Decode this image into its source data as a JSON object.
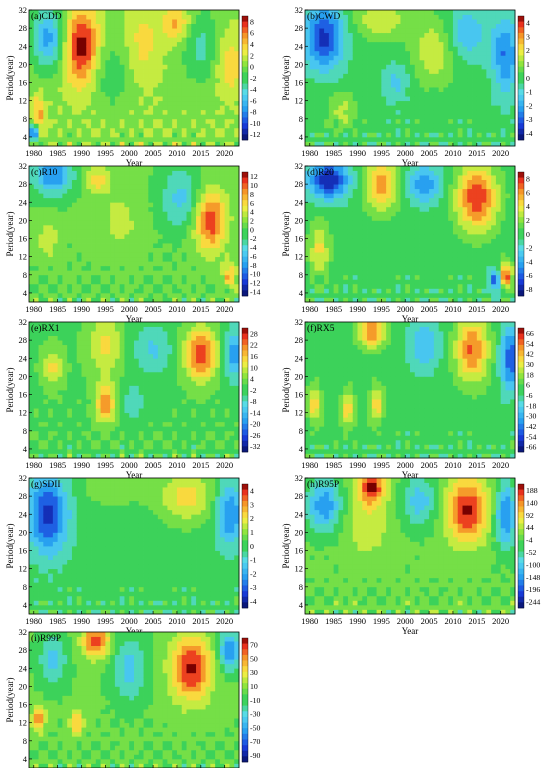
{
  "chart_data": [
    {
      "type": "heatmap",
      "panel": "(a)CDD",
      "xlabel": "Year",
      "ylabel": "Period(year)",
      "x_ticks": [
        "1980",
        "1985",
        "1990",
        "1995",
        "2000",
        "2005",
        "2010",
        "2015",
        "2020"
      ],
      "y_ticks": [
        "4",
        "8",
        "12",
        "16",
        "20",
        "24",
        "28",
        "32"
      ],
      "xlim": [
        1979,
        2023
      ],
      "ylim": [
        2,
        32
      ],
      "colorbar_ticks": [
        "8",
        "6",
        "4",
        "2",
        "0",
        "-2",
        "-4",
        "-6",
        "-8",
        "-10",
        "-12"
      ],
      "colorbar_range": [
        -14,
        9
      ],
      "features": [
        {
          "x": 1990,
          "y": 24,
          "value": 9,
          "sx": 2.5,
          "sy": 6
        },
        {
          "x": 1983,
          "y": 26,
          "value": -8,
          "sx": 2.5,
          "sy": 5
        },
        {
          "x": 2003,
          "y": 25,
          "value": 3,
          "sx": 2.5,
          "sy": 6
        },
        {
          "x": 2010,
          "y": 29,
          "value": 5,
          "sx": 2,
          "sy": 3
        },
        {
          "x": 2015,
          "y": 24,
          "value": -4,
          "sx": 3,
          "sy": 6
        },
        {
          "x": 1996,
          "y": 18,
          "value": -3,
          "sx": 3,
          "sy": 5
        },
        {
          "x": 1981,
          "y": 9,
          "value": 5,
          "sx": 1,
          "sy": 3
        },
        {
          "x": 1980,
          "y": 5,
          "value": -11,
          "sx": 0.8,
          "sy": 1.5
        },
        {
          "x": 2021,
          "y": 20,
          "value": 4,
          "sx": 2,
          "sy": 5
        }
      ]
    },
    {
      "type": "heatmap",
      "panel": "(b)CWD",
      "xlabel": "Year",
      "ylabel": "Period(year)",
      "x_ticks": [
        "1980",
        "1985",
        "1990",
        "1995",
        "2000",
        "2005",
        "2010",
        "2015",
        "2020"
      ],
      "y_ticks": [
        "4",
        "8",
        "12",
        "16",
        "20",
        "24",
        "28",
        "32"
      ],
      "xlim": [
        1979,
        2023
      ],
      "ylim": [
        2,
        32
      ],
      "colorbar_ticks": [
        "4",
        "3",
        "2",
        "1",
        "0",
        "-1",
        "-2",
        "-3",
        "-4"
      ],
      "colorbar_range": [
        -5,
        5
      ],
      "features": [
        {
          "x": 1983,
          "y": 26,
          "value": -4,
          "sx": 3,
          "sy": 5
        },
        {
          "x": 1995,
          "y": 30,
          "value": 2,
          "sx": 4,
          "sy": 3
        },
        {
          "x": 2006,
          "y": 23,
          "value": 2,
          "sx": 3,
          "sy": 5
        },
        {
          "x": 2013,
          "y": 27,
          "value": -2,
          "sx": 3,
          "sy": 4
        },
        {
          "x": 2021,
          "y": 22,
          "value": -3,
          "sx": 2,
          "sy": 6
        },
        {
          "x": 1998,
          "y": 16,
          "value": -1.5,
          "sx": 2,
          "sy": 3
        },
        {
          "x": 1987,
          "y": 10,
          "value": 1.5,
          "sx": 2,
          "sy": 3
        }
      ]
    },
    {
      "type": "heatmap",
      "panel": "(c)R10",
      "xlabel": "Year",
      "ylabel": "Period(year)",
      "x_ticks": [
        "1980",
        "1985",
        "1990",
        "1995",
        "2000",
        "2005",
        "2010",
        "2015",
        "2020"
      ],
      "y_ticks": [
        "4",
        "8",
        "12",
        "16",
        "20",
        "24",
        "28",
        "32"
      ],
      "xlim": [
        1979,
        2023
      ],
      "ylim": [
        2,
        32
      ],
      "colorbar_ticks": [
        "12",
        "10",
        "8",
        "6",
        "4",
        "2",
        "0",
        "-2",
        "-4",
        "-6",
        "-8",
        "-10",
        "-12",
        "-14"
      ],
      "colorbar_range": [
        -16,
        13
      ],
      "features": [
        {
          "x": 1984,
          "y": 30,
          "value": -10,
          "sx": 3,
          "sy": 3
        },
        {
          "x": 1993,
          "y": 29,
          "value": 6,
          "sx": 2,
          "sy": 2
        },
        {
          "x": 2017,
          "y": 20,
          "value": 11,
          "sx": 2.5,
          "sy": 5
        },
        {
          "x": 2021,
          "y": 8,
          "value": 7,
          "sx": 1,
          "sy": 2
        },
        {
          "x": 2011,
          "y": 25,
          "value": -6,
          "sx": 3,
          "sy": 5
        },
        {
          "x": 1998,
          "y": 20,
          "value": 3,
          "sx": 3,
          "sy": 5
        },
        {
          "x": 1983,
          "y": 16,
          "value": 4,
          "sx": 1.5,
          "sy": 3
        }
      ]
    },
    {
      "type": "heatmap",
      "panel": "(d)R20",
      "xlabel": "Year",
      "ylabel": "Period(year)",
      "x_ticks": [
        "1980",
        "1985",
        "1990",
        "1995",
        "2000",
        "2005",
        "2010",
        "2015",
        "2020"
      ],
      "y_ticks": [
        "4",
        "8",
        "12",
        "16",
        "20",
        "24",
        "28",
        "32"
      ],
      "xlim": [
        1979,
        2023
      ],
      "ylim": [
        2,
        32
      ],
      "colorbar_ticks": [
        "8",
        "6",
        "4",
        "2",
        "0",
        "-2",
        "-4",
        "-6",
        "-8"
      ],
      "colorbar_range": [
        -9,
        9
      ],
      "features": [
        {
          "x": 1984,
          "y": 29,
          "value": -8,
          "sx": 3,
          "sy": 3
        },
        {
          "x": 1995,
          "y": 28,
          "value": 6,
          "sx": 2.5,
          "sy": 4
        },
        {
          "x": 2015,
          "y": 25,
          "value": 8,
          "sx": 3,
          "sy": 5
        },
        {
          "x": 2004,
          "y": 28,
          "value": -5,
          "sx": 2.5,
          "sy": 3
        },
        {
          "x": 2021,
          "y": 8,
          "value": 8,
          "sx": 1,
          "sy": 2
        },
        {
          "x": 2019,
          "y": 7,
          "value": -6,
          "sx": 1,
          "sy": 2
        },
        {
          "x": 1982,
          "y": 14,
          "value": 4,
          "sx": 1.5,
          "sy": 4
        }
      ]
    },
    {
      "type": "heatmap",
      "panel": "(e)RX1",
      "xlabel": "Year",
      "ylabel": "Period(year)",
      "x_ticks": [
        "1980",
        "1985",
        "1990",
        "1995",
        "2000",
        "2005",
        "2010",
        "2015",
        "2020"
      ],
      "y_ticks": [
        "4",
        "8",
        "12",
        "16",
        "20",
        "24",
        "28",
        "32"
      ],
      "xlim": [
        1979,
        2023
      ],
      "ylim": [
        2,
        32
      ],
      "colorbar_ticks": [
        "28",
        "22",
        "16",
        "10",
        "4",
        "-2",
        "-8",
        "-14",
        "-20",
        "-26",
        "-32"
      ],
      "colorbar_range": [
        -38,
        34
      ],
      "features": [
        {
          "x": 2015,
          "y": 25,
          "value": 30,
          "sx": 2.5,
          "sy": 4
        },
        {
          "x": 1995,
          "y": 14,
          "value": 22,
          "sx": 1.5,
          "sy": 3
        },
        {
          "x": 1995,
          "y": 27,
          "value": 14,
          "sx": 2.5,
          "sy": 5
        },
        {
          "x": 2022,
          "y": 25,
          "value": -22,
          "sx": 1.5,
          "sy": 4
        },
        {
          "x": 2005,
          "y": 26,
          "value": -12,
          "sx": 3,
          "sy": 4
        },
        {
          "x": 1984,
          "y": 22,
          "value": 14,
          "sx": 1.5,
          "sy": 3
        },
        {
          "x": 2001,
          "y": 14,
          "value": -10,
          "sx": 1.5,
          "sy": 3
        }
      ]
    },
    {
      "type": "heatmap",
      "panel": "(f)RX5",
      "xlabel": "Year",
      "ylabel": "Period(year)",
      "x_ticks": [
        "1980",
        "1985",
        "1990",
        "1995",
        "2000",
        "2005",
        "2010",
        "2015",
        "2020"
      ],
      "y_ticks": [
        "4",
        "8",
        "12",
        "16",
        "20",
        "24",
        "28",
        "32"
      ],
      "xlim": [
        1979,
        2023
      ],
      "ylim": [
        2,
        32
      ],
      "colorbar_ticks": [
        "66",
        "54",
        "42",
        "30",
        "18",
        "6",
        "-6",
        "-18",
        "-30",
        "-42",
        "-54",
        "-66"
      ],
      "colorbar_range": [
        -78,
        78
      ],
      "features": [
        {
          "x": 1993,
          "y": 30,
          "value": 60,
          "sx": 2,
          "sy": 2.5
        },
        {
          "x": 2014,
          "y": 26,
          "value": 60,
          "sx": 2.5,
          "sy": 5
        },
        {
          "x": 2022,
          "y": 24,
          "value": -55,
          "sx": 1.5,
          "sy": 5
        },
        {
          "x": 2004,
          "y": 27,
          "value": -30,
          "sx": 2.5,
          "sy": 4
        },
        {
          "x": 1981,
          "y": 14,
          "value": 40,
          "sx": 1,
          "sy": 3
        },
        {
          "x": 1988,
          "y": 13,
          "value": 40,
          "sx": 1,
          "sy": 3
        },
        {
          "x": 1994,
          "y": 14,
          "value": 40,
          "sx": 1,
          "sy": 3
        }
      ]
    },
    {
      "type": "heatmap",
      "panel": "(g)SDII",
      "xlabel": "Year",
      "ylabel": "Period(year)",
      "x_ticks": [
        "1980",
        "1985",
        "1990",
        "1995",
        "2000",
        "2005",
        "2010",
        "2015",
        "2020"
      ],
      "y_ticks": [
        "4",
        "8",
        "12",
        "16",
        "20",
        "24",
        "28",
        "32"
      ],
      "xlim": [
        1979,
        2023
      ],
      "ylim": [
        2,
        32
      ],
      "colorbar_ticks": [
        "4",
        "3",
        "2",
        "1",
        "0",
        "-1",
        "-2",
        "-3",
        "-4"
      ],
      "colorbar_range": [
        -5,
        5
      ],
      "features": [
        {
          "x": 1983,
          "y": 24,
          "value": -4,
          "sx": 3,
          "sy": 6
        },
        {
          "x": 2012,
          "y": 28,
          "value": 2.5,
          "sx": 4,
          "sy": 4
        },
        {
          "x": 2021,
          "y": 24,
          "value": -3,
          "sx": 2,
          "sy": 5
        },
        {
          "x": 1997,
          "y": 30,
          "value": 1,
          "sx": 5,
          "sy": 3
        }
      ]
    },
    {
      "type": "heatmap",
      "panel": "(h)R95P",
      "xlabel": "Year",
      "ylabel": "Period(year)",
      "x_ticks": [
        "1980",
        "1985",
        "1990",
        "1995",
        "2000",
        "2005",
        "2010",
        "2015",
        "2020"
      ],
      "y_ticks": [
        "4",
        "8",
        "12",
        "16",
        "20",
        "24",
        "28",
        "32"
      ],
      "xlim": [
        1979,
        2023
      ],
      "ylim": [
        2,
        32
      ],
      "colorbar_ticks": [
        "188",
        "140",
        "92",
        "44",
        "-4",
        "-52",
        "-100",
        "-148",
        "-196",
        "-244"
      ],
      "colorbar_range": [
        -270,
        215
      ],
      "features": [
        {
          "x": 2013,
          "y": 25,
          "value": 200,
          "sx": 3,
          "sy": 5
        },
        {
          "x": 1993,
          "y": 30,
          "value": 190,
          "sx": 2,
          "sy": 2.5
        },
        {
          "x": 1983,
          "y": 26,
          "value": -160,
          "sx": 2.5,
          "sy": 4
        },
        {
          "x": 2021,
          "y": 24,
          "value": -180,
          "sx": 1.5,
          "sy": 5
        },
        {
          "x": 2003,
          "y": 27,
          "value": -110,
          "sx": 2.5,
          "sy": 4
        },
        {
          "x": 1992,
          "y": 22,
          "value": 70,
          "sx": 3,
          "sy": 5
        }
      ]
    },
    {
      "type": "heatmap",
      "panel": "(i)R99P",
      "xlabel": "Year",
      "ylabel": "Period(year)",
      "x_ticks": [
        "1980",
        "1985",
        "1990",
        "1995",
        "2000",
        "2005",
        "2010",
        "2015",
        "2020"
      ],
      "y_ticks": [
        "4",
        "8",
        "12",
        "16",
        "20",
        "24",
        "28",
        "32"
      ],
      "xlim": [
        1979,
        2023
      ],
      "ylim": [
        2,
        32
      ],
      "colorbar_ticks": [
        "70",
        "50",
        "30",
        "10",
        "-10",
        "-30",
        "-50",
        "-70",
        "-90"
      ],
      "colorbar_range": [
        -105,
        85
      ],
      "features": [
        {
          "x": 2013,
          "y": 24,
          "value": 80,
          "sx": 3,
          "sy": 5
        },
        {
          "x": 1993,
          "y": 30,
          "value": 75,
          "sx": 2,
          "sy": 2.5
        },
        {
          "x": 1981,
          "y": 13,
          "value": 60,
          "sx": 1,
          "sy": 2
        },
        {
          "x": 1989,
          "y": 12,
          "value": 50,
          "sx": 1,
          "sy": 2
        },
        {
          "x": 2021,
          "y": 28,
          "value": -70,
          "sx": 1.5,
          "sy": 3
        },
        {
          "x": 2000,
          "y": 24,
          "value": -40,
          "sx": 2.5,
          "sy": 5
        },
        {
          "x": 1984,
          "y": 26,
          "value": -40,
          "sx": 2,
          "sy": 4
        }
      ]
    }
  ]
}
